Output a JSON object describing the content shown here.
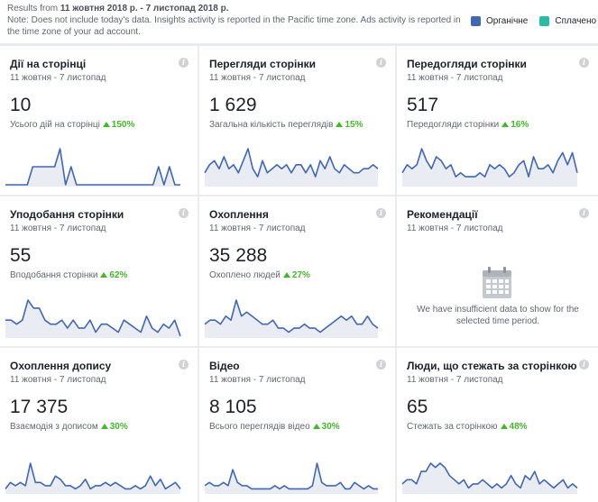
{
  "header": {
    "results_prefix": "Results from ",
    "results_range": "11 жовтня 2018 р. - 7 листопад 2018 р.",
    "note": "Note: Does not include today's data. Insights activity is reported in the Pacific time zone. Ads activity is reported in the time zone of your ad account."
  },
  "legend": {
    "organic_label": "Органічне",
    "organic_color": "#4267b2",
    "paid_label": "Сплачено",
    "paid_color": "#2abba7"
  },
  "cards": [
    {
      "title": "Дії на сторінці",
      "date": "11 жовтня - 7 листопад",
      "value": "10",
      "sub": "Усього дій на сторінці",
      "delta": "150%",
      "series": [
        0,
        0,
        0,
        0,
        0,
        2,
        2,
        2,
        2,
        2,
        4,
        0,
        2,
        0,
        0,
        0,
        0,
        0,
        0,
        0,
        0,
        0,
        0,
        0,
        0,
        0,
        0,
        0,
        2,
        0,
        2,
        0,
        0
      ]
    },
    {
      "title": "Перегляди сторінки",
      "date": "11 жовтня - 7 листопад",
      "value": "1 629",
      "sub": "Загальна кількість переглядів",
      "delta": "15%",
      "series": [
        3,
        5,
        6,
        4,
        7,
        4,
        5,
        3,
        6,
        9,
        4,
        2,
        6,
        3,
        4,
        5,
        4,
        5,
        3,
        5,
        5,
        3,
        5,
        2,
        6,
        4,
        7,
        4,
        3,
        5,
        4,
        3,
        3,
        4,
        4,
        5,
        4
      ]
    },
    {
      "title": "Передогляди сторінки",
      "date": "11 жовтня - 7 листопад",
      "value": "517",
      "sub": "Передогляди сторінки",
      "delta": "16%",
      "series": [
        3,
        5,
        4,
        5,
        9,
        6,
        4,
        7,
        6,
        4,
        5,
        2,
        3,
        2,
        2,
        2,
        3,
        2,
        5,
        4,
        5,
        4,
        2,
        3,
        5,
        6,
        2,
        7,
        4,
        4,
        5,
        3,
        6,
        8,
        5,
        8,
        3
      ]
    },
    {
      "title": "Уподобання сторінки",
      "date": "11 жовтня - 7 листопад",
      "value": "55",
      "sub": "Вподобання сторінки",
      "delta": "62%",
      "series": [
        4,
        4,
        3,
        4,
        9,
        7,
        7,
        4,
        3,
        3,
        4,
        2,
        4,
        2,
        2,
        4,
        1,
        3,
        3,
        2,
        1,
        4,
        3,
        2,
        1,
        5,
        2,
        1,
        3,
        2,
        4,
        0
      ]
    },
    {
      "title": "Охоплення",
      "date": "11 жовтня - 7 листопад",
      "value": "35 288",
      "sub": "Охоплено людей",
      "delta": "27%",
      "series": [
        3,
        4,
        4,
        3,
        5,
        4,
        9,
        5,
        6,
        5,
        4,
        3,
        3,
        4,
        2,
        2,
        1,
        2,
        2,
        3,
        2,
        2,
        1,
        2,
        3,
        4,
        5,
        4,
        5,
        3,
        3,
        5,
        3,
        2
      ]
    },
    {
      "title": "Рекомендації",
      "date": "11 жовтня - 7 листопад",
      "empty_text": "We have insufficient data to show for the selected time period."
    },
    {
      "title": "Охоплення допису",
      "date": "11 жовтня - 7 листопад",
      "value": "17 375",
      "sub": "Взаємодія з дописом",
      "delta": "30%",
      "series": [
        1,
        3,
        2,
        3,
        2,
        9,
        3,
        3,
        2,
        2,
        5,
        4,
        2,
        2,
        1,
        2,
        4,
        1,
        2,
        2,
        3,
        2,
        3,
        2,
        1,
        1,
        2,
        1,
        2,
        5,
        2,
        4,
        1,
        2,
        3,
        1
      ]
    },
    {
      "title": "Відео",
      "date": "11 жовтня - 7 листопад",
      "value": "8 105",
      "sub": "Всього переглядів відео",
      "delta": "30%",
      "series": [
        2,
        3,
        2,
        2,
        3,
        2,
        7,
        3,
        2,
        2,
        1,
        1,
        1,
        1,
        1,
        2,
        1,
        2,
        1,
        1,
        1,
        1,
        1,
        2,
        9,
        3,
        2,
        2,
        2,
        3,
        1,
        1,
        3,
        2,
        1,
        2,
        1,
        1
      ]
    },
    {
      "title": "Люди, що стежать за сторінкою",
      "date": "11 жовтня - 7 листопад",
      "value": "65",
      "sub": "Стежать за сторінкою",
      "delta": "48%",
      "series": [
        2,
        3,
        3,
        2,
        5,
        5,
        7,
        6,
        7,
        6,
        4,
        3,
        2,
        3,
        1,
        2,
        2,
        3,
        2,
        1,
        2,
        1,
        2,
        4,
        2,
        1,
        4,
        3,
        5,
        2,
        3,
        2,
        1,
        2,
        3,
        1,
        2,
        1
      ]
    }
  ]
}
